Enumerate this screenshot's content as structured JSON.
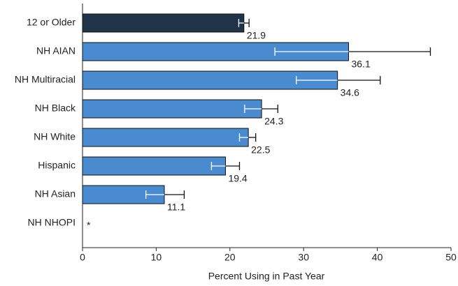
{
  "chart_data": {
    "type": "bar",
    "orientation": "horizontal",
    "categories": [
      "12 or Older",
      "NH AIAN",
      "NH Multiracial",
      "NH Black",
      "NH White",
      "Hispanic",
      "NH Asian",
      "NH NHOPI"
    ],
    "values": [
      21.9,
      36.1,
      34.6,
      24.3,
      22.5,
      19.4,
      11.1,
      null
    ],
    "value_labels": [
      "21.9",
      "36.1",
      "34.6",
      "24.3",
      "22.5",
      "19.4",
      "11.1",
      "*"
    ],
    "ci_low": [
      21.2,
      26.1,
      29.0,
      22.0,
      21.3,
      17.5,
      8.6,
      null
    ],
    "ci_high": [
      22.6,
      47.2,
      40.4,
      26.5,
      23.5,
      21.3,
      13.8,
      null
    ],
    "colors": [
      "#1f3349",
      "#4a8bd0",
      "#4a8bd0",
      "#4a8bd0",
      "#4a8bd0",
      "#4a8bd0",
      "#4a8bd0",
      "#4a8bd0"
    ],
    "xlabel": "Percent Using in Past Year",
    "xlim": [
      0,
      50
    ],
    "xticks": [
      0,
      10,
      20,
      30,
      40,
      50
    ]
  }
}
